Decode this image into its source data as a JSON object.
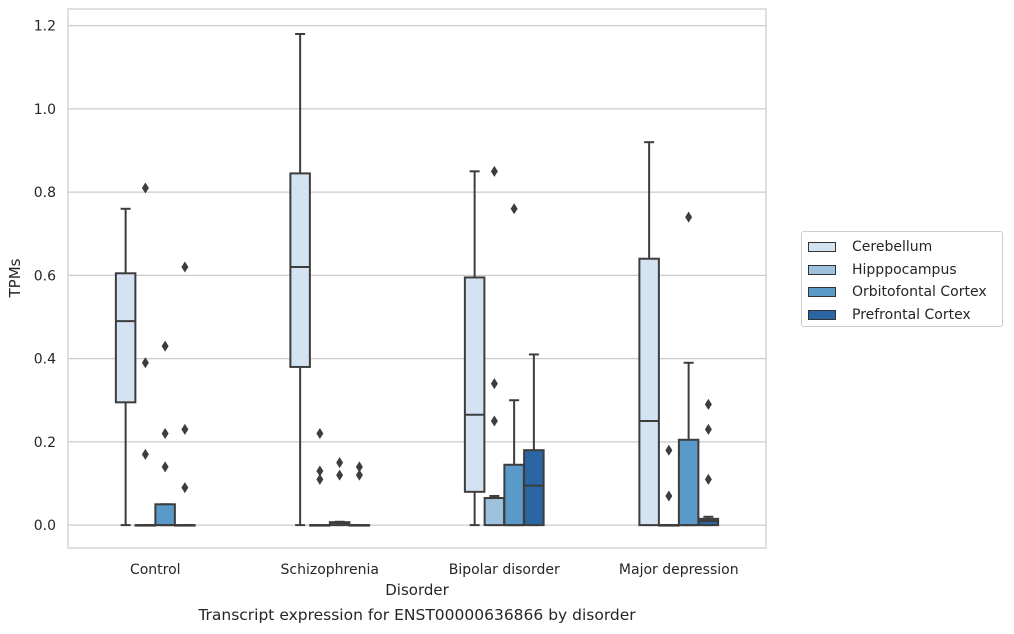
{
  "caption": "Transcript expression for ENST00000636866 by disorder",
  "chart_data": {
    "type": "box",
    "xlabel": "Disorder",
    "ylabel": "TPMs",
    "ylim": [
      -0.055,
      1.24
    ],
    "yticks": [
      "0.0",
      "0.2",
      "0.4",
      "0.6",
      "0.8",
      "1.0",
      "1.2"
    ],
    "ytick_values": [
      0,
      0.2,
      0.4,
      0.6,
      0.8,
      1.0,
      1.2
    ],
    "grid": "horizontal",
    "legend_position": "right",
    "categories": [
      "Control",
      "Schizophrenia",
      "Bipolar disorder",
      "Major depression"
    ],
    "series": [
      {
        "name": "Cerebellum",
        "color": "#d4e3f2",
        "boxes": [
          {
            "min": 0.0,
            "q1": 0.295,
            "median": 0.49,
            "q3": 0.605,
            "max": 0.76,
            "outliers": []
          },
          {
            "min": 0.0,
            "q1": 0.38,
            "median": 0.62,
            "q3": 0.845,
            "max": 1.18,
            "outliers": []
          },
          {
            "min": 0.0,
            "q1": 0.08,
            "median": 0.265,
            "q3": 0.595,
            "max": 0.85,
            "outliers": []
          },
          {
            "min": 0.0,
            "q1": 0.0,
            "median": 0.25,
            "q3": 0.64,
            "max": 0.92,
            "outliers": []
          }
        ]
      },
      {
        "name": "Hipppocampus",
        "color": "#9ec2de",
        "boxes": [
          {
            "min": 0.0,
            "q1": 0.0,
            "median": 0.0,
            "q3": 0.0,
            "max": 0.0,
            "outliers": [
              0.81,
              0.39,
              0.17
            ]
          },
          {
            "min": 0.0,
            "q1": 0.0,
            "median": 0.0,
            "q3": 0.0,
            "max": 0.0,
            "outliers": [
              0.22,
              0.13,
              0.11
            ]
          },
          {
            "min": 0.0,
            "q1": 0.0,
            "median": 0.065,
            "q3": 0.065,
            "max": 0.07,
            "outliers": [
              0.85,
              0.34,
              0.25
            ]
          },
          {
            "min": 0.0,
            "q1": 0.0,
            "median": 0.0,
            "q3": 0.0,
            "max": 0.0,
            "outliers": [
              0.18,
              0.07
            ]
          }
        ]
      },
      {
        "name": "Orbitofontal Cortex",
        "color": "#5a9ac8",
        "boxes": [
          {
            "min": 0.0,
            "q1": 0.0,
            "median": 0.0,
            "q3": 0.05,
            "max": 0.05,
            "outliers": [
              0.43,
              0.22,
              0.14
            ]
          },
          {
            "min": 0.0,
            "q1": 0.0,
            "median": 0.005,
            "q3": 0.007,
            "max": 0.008,
            "outliers": [
              0.15,
              0.12
            ]
          },
          {
            "min": 0.0,
            "q1": 0.0,
            "median": 0.0,
            "q3": 0.145,
            "max": 0.3,
            "outliers": [
              0.76
            ]
          },
          {
            "min": 0.0,
            "q1": 0.0,
            "median": 0.0,
            "q3": 0.205,
            "max": 0.39,
            "outliers": [
              0.74
            ]
          }
        ]
      },
      {
        "name": "Prefrontal Cortex",
        "color": "#2a66a4",
        "boxes": [
          {
            "min": 0.0,
            "q1": 0.0,
            "median": 0.0,
            "q3": 0.0,
            "max": 0.0,
            "outliers": [
              0.62,
              0.23,
              0.09
            ]
          },
          {
            "min": 0.0,
            "q1": 0.0,
            "median": 0.0,
            "q3": 0.0,
            "max": 0.0,
            "outliers": [
              0.14,
              0.12
            ]
          },
          {
            "min": 0.0,
            "q1": 0.0,
            "median": 0.095,
            "q3": 0.18,
            "max": 0.41,
            "outliers": []
          },
          {
            "min": 0.0,
            "q1": 0.0,
            "median": 0.01,
            "q3": 0.015,
            "max": 0.02,
            "outliers": [
              0.29,
              0.23,
              0.11
            ]
          }
        ]
      }
    ]
  }
}
